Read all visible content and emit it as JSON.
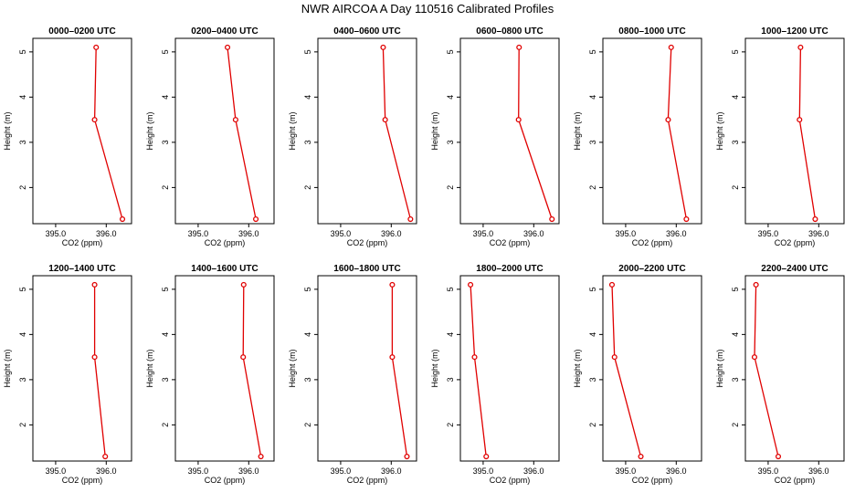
{
  "title": "NWR AIRCOA A  Day 110516  Calibrated Profiles",
  "colors": {
    "series": "#e00000",
    "axis": "#000000",
    "background": "#ffffff"
  },
  "chart_data": [
    {
      "type": "line",
      "title": "0000–0200 UTC",
      "xlabel": "CO2 (ppm)",
      "ylabel": "Height (m)",
      "xlim": [
        394.55,
        396.5
      ],
      "ylim": [
        1.2,
        5.3
      ],
      "x_ticks": [
        395.0,
        396.0
      ],
      "x_tick_labels": [
        "395.0",
        "396.0"
      ],
      "y_ticks": [
        2,
        3,
        4,
        5
      ],
      "y_tick_labels": [
        "2",
        "3",
        "4",
        "5"
      ],
      "series": [
        {
          "name": "CO2",
          "x": [
            395.8,
            395.77,
            396.32
          ],
          "y": [
            5.1,
            3.5,
            1.3
          ]
        }
      ]
    },
    {
      "type": "line",
      "title": "0200–0400 UTC",
      "xlabel": "CO2 (ppm)",
      "ylabel": "Height (m)",
      "xlim": [
        394.55,
        396.5
      ],
      "ylim": [
        1.2,
        5.3
      ],
      "x_ticks": [
        395.0,
        396.0
      ],
      "x_tick_labels": [
        "395.0",
        "396.0"
      ],
      "y_ticks": [
        2,
        3,
        4,
        5
      ],
      "y_tick_labels": [
        "2",
        "3",
        "4",
        "5"
      ],
      "series": [
        {
          "name": "CO2",
          "x": [
            395.58,
            395.74,
            396.14
          ],
          "y": [
            5.1,
            3.5,
            1.3
          ]
        }
      ]
    },
    {
      "type": "line",
      "title": "0400–0600 UTC",
      "xlabel": "CO2 (ppm)",
      "ylabel": "Height (m)",
      "xlim": [
        394.55,
        396.5
      ],
      "ylim": [
        1.2,
        5.3
      ],
      "x_ticks": [
        395.0,
        396.0
      ],
      "x_tick_labels": [
        "395.0",
        "396.0"
      ],
      "y_ticks": [
        2,
        3,
        4,
        5
      ],
      "y_tick_labels": [
        "2",
        "3",
        "4",
        "5"
      ],
      "series": [
        {
          "name": "CO2",
          "x": [
            395.84,
            395.88,
            396.38
          ],
          "y": [
            5.1,
            3.5,
            1.3
          ]
        }
      ]
    },
    {
      "type": "line",
      "title": "0600–0800 UTC",
      "xlabel": "CO2 (ppm)",
      "ylabel": "Height (m)",
      "xlim": [
        394.55,
        396.5
      ],
      "ylim": [
        1.2,
        5.3
      ],
      "x_ticks": [
        395.0,
        396.0
      ],
      "x_tick_labels": [
        "395.0",
        "396.0"
      ],
      "y_ticks": [
        2,
        3,
        4,
        5
      ],
      "y_tick_labels": [
        "2",
        "3",
        "4",
        "5"
      ],
      "series": [
        {
          "name": "CO2",
          "x": [
            395.71,
            395.7,
            396.36
          ],
          "y": [
            5.1,
            3.5,
            1.3
          ]
        }
      ]
    },
    {
      "type": "line",
      "title": "0800–1000 UTC",
      "xlabel": "CO2 (ppm)",
      "ylabel": "Height (m)",
      "xlim": [
        394.55,
        396.5
      ],
      "ylim": [
        1.2,
        5.3
      ],
      "x_ticks": [
        395.0,
        396.0
      ],
      "x_tick_labels": [
        "395.0",
        "396.0"
      ],
      "y_ticks": [
        2,
        3,
        4,
        5
      ],
      "y_tick_labels": [
        "2",
        "3",
        "4",
        "5"
      ],
      "series": [
        {
          "name": "CO2",
          "x": [
            395.9,
            395.84,
            396.2
          ],
          "y": [
            5.1,
            3.5,
            1.3
          ]
        }
      ]
    },
    {
      "type": "line",
      "title": "1000–1200 UTC",
      "xlabel": "CO2 (ppm)",
      "ylabel": "Height (m)",
      "xlim": [
        394.55,
        396.5
      ],
      "ylim": [
        1.2,
        5.3
      ],
      "x_ticks": [
        395.0,
        396.0
      ],
      "x_tick_labels": [
        "395.0",
        "396.0"
      ],
      "y_ticks": [
        2,
        3,
        4,
        5
      ],
      "y_tick_labels": [
        "2",
        "3",
        "4",
        "5"
      ],
      "series": [
        {
          "name": "CO2",
          "x": [
            395.64,
            395.62,
            395.93
          ],
          "y": [
            5.1,
            3.5,
            1.3
          ]
        }
      ]
    },
    {
      "type": "line",
      "title": "1200–1400 UTC",
      "xlabel": "CO2 (ppm)",
      "ylabel": "Height (m)",
      "xlim": [
        394.55,
        396.5
      ],
      "ylim": [
        1.2,
        5.3
      ],
      "x_ticks": [
        395.0,
        396.0
      ],
      "x_tick_labels": [
        "395.0",
        "396.0"
      ],
      "y_ticks": [
        2,
        3,
        4,
        5
      ],
      "y_tick_labels": [
        "2",
        "3",
        "4",
        "5"
      ],
      "series": [
        {
          "name": "CO2",
          "x": [
            395.77,
            395.77,
            395.98
          ],
          "y": [
            5.1,
            3.5,
            1.3
          ]
        }
      ]
    },
    {
      "type": "line",
      "title": "1400–1600 UTC",
      "xlabel": "CO2 (ppm)",
      "ylabel": "Height (m)",
      "xlim": [
        394.55,
        396.5
      ],
      "ylim": [
        1.2,
        5.3
      ],
      "x_ticks": [
        395.0,
        396.0
      ],
      "x_tick_labels": [
        "395.0",
        "396.0"
      ],
      "y_ticks": [
        2,
        3,
        4,
        5
      ],
      "y_tick_labels": [
        "2",
        "3",
        "4",
        "5"
      ],
      "series": [
        {
          "name": "CO2",
          "x": [
            395.9,
            395.89,
            396.24
          ],
          "y": [
            5.1,
            3.5,
            1.3
          ]
        }
      ]
    },
    {
      "type": "line",
      "title": "1600–1800 UTC",
      "xlabel": "CO2 (ppm)",
      "ylabel": "Height (m)",
      "xlim": [
        394.55,
        396.5
      ],
      "ylim": [
        1.2,
        5.3
      ],
      "x_ticks": [
        395.0,
        396.0
      ],
      "x_tick_labels": [
        "395.0",
        "396.0"
      ],
      "y_ticks": [
        2,
        3,
        4,
        5
      ],
      "y_tick_labels": [
        "2",
        "3",
        "4",
        "5"
      ],
      "series": [
        {
          "name": "CO2",
          "x": [
            396.02,
            396.02,
            396.31
          ],
          "y": [
            5.1,
            3.5,
            1.3
          ]
        }
      ]
    },
    {
      "type": "line",
      "title": "1800–2000 UTC",
      "xlabel": "CO2 (ppm)",
      "ylabel": "Height (m)",
      "xlim": [
        394.55,
        396.5
      ],
      "ylim": [
        1.2,
        5.3
      ],
      "x_ticks": [
        395.0,
        396.0
      ],
      "x_tick_labels": [
        "395.0",
        "396.0"
      ],
      "y_ticks": [
        2,
        3,
        4,
        5
      ],
      "y_tick_labels": [
        "2",
        "3",
        "4",
        "5"
      ],
      "series": [
        {
          "name": "CO2",
          "x": [
            394.75,
            394.83,
            395.06
          ],
          "y": [
            5.1,
            3.5,
            1.3
          ]
        }
      ]
    },
    {
      "type": "line",
      "title": "2000–2200 UTC",
      "xlabel": "CO2 (ppm)",
      "ylabel": "Height (m)",
      "xlim": [
        394.55,
        396.5
      ],
      "ylim": [
        1.2,
        5.3
      ],
      "x_ticks": [
        395.0,
        396.0
      ],
      "x_tick_labels": [
        "395.0",
        "396.0"
      ],
      "y_ticks": [
        2,
        3,
        4,
        5
      ],
      "y_tick_labels": [
        "2",
        "3",
        "4",
        "5"
      ],
      "series": [
        {
          "name": "CO2",
          "x": [
            394.73,
            394.78,
            395.3
          ],
          "y": [
            5.1,
            3.5,
            1.3
          ]
        }
      ]
    },
    {
      "type": "line",
      "title": "2200–2400 UTC",
      "xlabel": "CO2 (ppm)",
      "ylabel": "Height (m)",
      "xlim": [
        394.55,
        396.5
      ],
      "ylim": [
        1.2,
        5.3
      ],
      "x_ticks": [
        395.0,
        396.0
      ],
      "x_tick_labels": [
        "395.0",
        "396.0"
      ],
      "y_ticks": [
        2,
        3,
        4,
        5
      ],
      "y_tick_labels": [
        "2",
        "3",
        "4",
        "5"
      ],
      "series": [
        {
          "name": "CO2",
          "x": [
            394.76,
            394.73,
            395.2
          ],
          "y": [
            5.1,
            3.5,
            1.3
          ]
        }
      ]
    }
  ]
}
